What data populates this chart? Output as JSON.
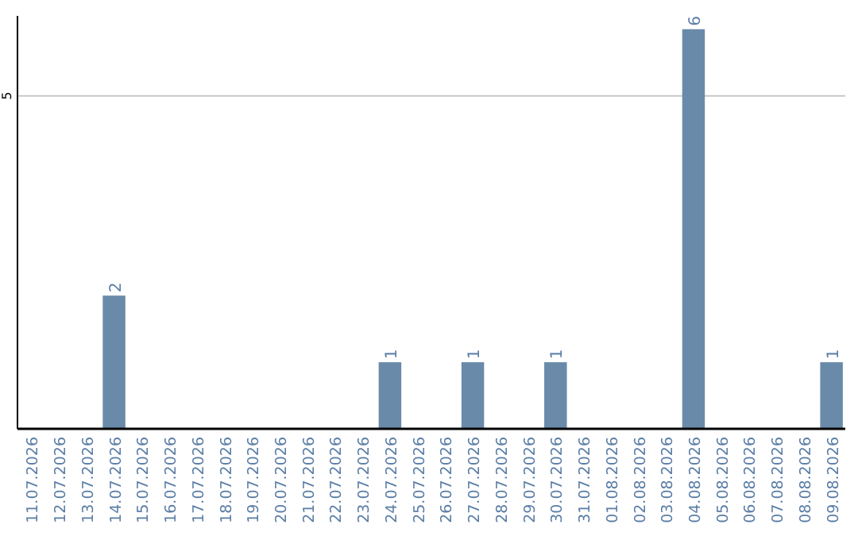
{
  "chart_data": {
    "type": "bar",
    "categories": [
      "11.07.2026",
      "12.07.2026",
      "13.07.2026",
      "14.07.2026",
      "15.07.2026",
      "16.07.2026",
      "17.07.2026",
      "18.07.2026",
      "19.07.2026",
      "20.07.2026",
      "21.07.2026",
      "22.07.2026",
      "23.07.2026",
      "24.07.2026",
      "25.07.2026",
      "26.07.2026",
      "27.07.2026",
      "28.07.2026",
      "29.07.2026",
      "30.07.2026",
      "31.07.2026",
      "01.08.2026",
      "02.08.2026",
      "03.08.2026",
      "04.08.2026",
      "05.08.2026",
      "06.08.2026",
      "07.08.2026",
      "08.08.2026",
      "09.08.2026"
    ],
    "values": [
      0,
      0,
      0,
      2,
      0,
      0,
      0,
      0,
      0,
      0,
      0,
      0,
      0,
      1,
      0,
      0,
      1,
      0,
      0,
      1,
      0,
      0,
      0,
      0,
      6,
      0,
      0,
      0,
      0,
      1
    ],
    "value_labels": [
      null,
      null,
      null,
      "2",
      null,
      null,
      null,
      null,
      null,
      null,
      null,
      null,
      null,
      "1",
      null,
      null,
      "1",
      null,
      null,
      "1",
      null,
      null,
      null,
      null,
      "6",
      null,
      null,
      null,
      null,
      "1"
    ],
    "color": "#6a8aaa",
    "ylim": [
      0,
      6.2
    ],
    "yticks": [
      5
    ],
    "grid": "y"
  }
}
